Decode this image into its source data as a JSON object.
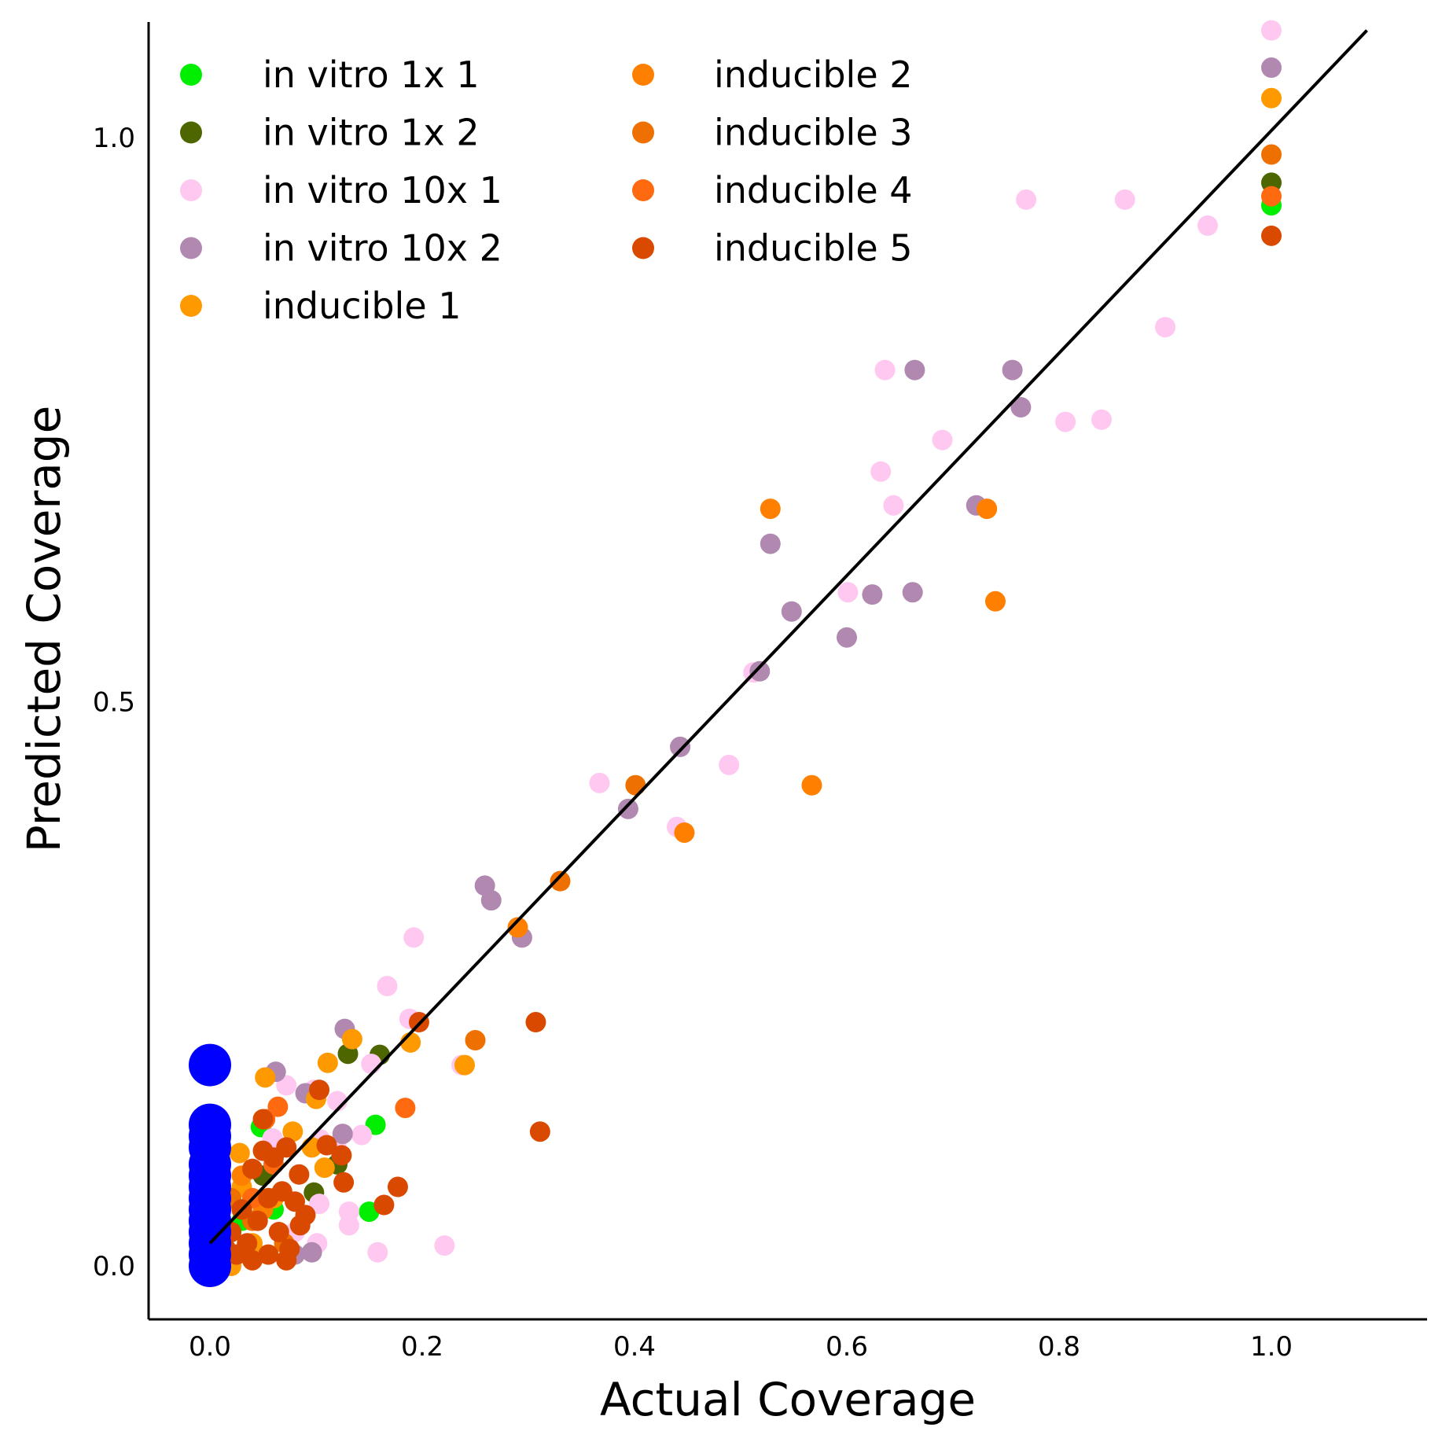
{
  "chart_data": {
    "type": "scatter",
    "title": "",
    "xlabel": "Actual Coverage",
    "ylabel": "Predicted Coverage",
    "xlim": [
      -0.058,
      1.145
    ],
    "ylim": [
      -0.05,
      1.1
    ],
    "xticks": [
      "0.0",
      "0.2",
      "0.4",
      "0.6",
      "0.8",
      "1.0"
    ],
    "yticks": [
      "0.0",
      "0.5",
      "1.0"
    ],
    "grid": false,
    "legend": {
      "placement": "top-left",
      "columns": 2
    },
    "reference_line": {
      "from": [
        0.0,
        0.02
      ],
      "to": [
        1.09,
        1.095
      ],
      "color": "#000000"
    },
    "series": [
      {
        "name": "in vitro 1x 1",
        "color": "#00ee00",
        "points": [
          [
            1.0,
            0.94
          ],
          [
            0.156,
            0.125
          ],
          [
            0.048,
            0.123
          ],
          [
            0.15,
            0.048
          ],
          [
            0.03,
            0.04
          ],
          [
            0.06,
            0.05
          ],
          [
            0.02,
            0.03
          ]
        ]
      },
      {
        "name": "in vitro 1x 2",
        "color": "#4d6600",
        "points": [
          [
            1.0,
            0.96
          ],
          [
            0.16,
            0.187
          ],
          [
            0.13,
            0.188
          ],
          [
            0.098,
            0.065
          ],
          [
            0.12,
            0.09
          ],
          [
            0.05,
            0.08
          ],
          [
            0.03,
            0.05
          ]
        ]
      },
      {
        "name": "in vitro 10x 1",
        "color": "#ffc8f0",
        "points": [
          [
            1.0,
            1.095
          ],
          [
            0.769,
            0.945
          ],
          [
            0.862,
            0.945
          ],
          [
            0.94,
            0.922
          ],
          [
            0.9,
            0.832
          ],
          [
            0.636,
            0.794
          ],
          [
            0.69,
            0.732
          ],
          [
            0.806,
            0.748
          ],
          [
            0.84,
            0.75
          ],
          [
            0.632,
            0.704
          ],
          [
            0.644,
            0.674
          ],
          [
            0.601,
            0.597
          ],
          [
            0.512,
            0.526
          ],
          [
            0.489,
            0.444
          ],
          [
            0.367,
            0.428
          ],
          [
            0.44,
            0.389
          ],
          [
            0.192,
            0.291
          ],
          [
            0.167,
            0.248
          ],
          [
            0.188,
            0.219
          ],
          [
            0.237,
            0.178
          ],
          [
            0.152,
            0.179
          ],
          [
            0.072,
            0.16
          ],
          [
            0.098,
            0.156
          ],
          [
            0.12,
            0.146
          ],
          [
            0.059,
            0.113
          ],
          [
            0.104,
            0.112
          ],
          [
            0.119,
            0.107
          ],
          [
            0.143,
            0.116
          ],
          [
            0.103,
            0.055
          ],
          [
            0.131,
            0.048
          ],
          [
            0.131,
            0.036
          ],
          [
            0.101,
            0.02
          ],
          [
            0.221,
            0.018
          ],
          [
            0.158,
            0.012
          ],
          [
            0.08,
            0.03
          ]
        ]
      },
      {
        "name": "in vitro 10x 2",
        "color": "#b088b0",
        "points": [
          [
            1.0,
            1.062
          ],
          [
            0.664,
            0.794
          ],
          [
            0.756,
            0.794
          ],
          [
            0.764,
            0.761
          ],
          [
            0.722,
            0.674
          ],
          [
            0.528,
            0.64
          ],
          [
            0.548,
            0.58
          ],
          [
            0.6,
            0.557
          ],
          [
            0.624,
            0.595
          ],
          [
            0.662,
            0.597
          ],
          [
            0.518,
            0.527
          ],
          [
            0.443,
            0.46
          ],
          [
            0.394,
            0.405
          ],
          [
            0.259,
            0.337
          ],
          [
            0.265,
            0.324
          ],
          [
            0.294,
            0.291
          ],
          [
            0.127,
            0.21
          ],
          [
            0.062,
            0.172
          ],
          [
            0.09,
            0.153
          ],
          [
            0.125,
            0.117
          ],
          [
            0.08,
            0.01
          ],
          [
            0.096,
            0.012
          ]
        ]
      },
      {
        "name": "inducible 1",
        "color": "#ff9900",
        "points": [
          [
            1.0,
            1.035
          ],
          [
            0.111,
            0.18
          ],
          [
            0.134,
            0.201
          ],
          [
            0.052,
            0.167
          ],
          [
            0.1,
            0.148
          ],
          [
            0.078,
            0.119
          ],
          [
            0.096,
            0.105
          ],
          [
            0.108,
            0.087
          ],
          [
            0.028,
            0.1
          ],
          [
            0.24,
            0.178
          ],
          [
            0.189,
            0.198
          ],
          [
            0.02,
            0.0
          ],
          [
            0.04,
            0.02
          ],
          [
            0.06,
            0.06
          ],
          [
            0.03,
            0.07
          ]
        ]
      },
      {
        "name": "inducible 2",
        "color": "#ff8000",
        "points": [
          [
            0.528,
            0.671
          ],
          [
            0.732,
            0.671
          ],
          [
            0.74,
            0.589
          ],
          [
            0.567,
            0.426
          ],
          [
            0.447,
            0.384
          ],
          [
            0.29,
            0.3
          ],
          [
            0.05,
            0.05
          ],
          [
            0.03,
            0.08
          ]
        ]
      },
      {
        "name": "inducible 3",
        "color": "#ee7000",
        "points": [
          [
            1.0,
            0.985
          ],
          [
            0.401,
            0.426
          ],
          [
            0.33,
            0.341
          ],
          [
            0.25,
            0.2
          ],
          [
            0.04,
            0.04
          ],
          [
            0.02,
            0.06
          ],
          [
            0.07,
            0.02
          ]
        ]
      },
      {
        "name": "inducible 4",
        "color": "#ff6a10",
        "points": [
          [
            1.0,
            0.948
          ],
          [
            0.184,
            0.14
          ],
          [
            0.064,
            0.141
          ],
          [
            0.052,
            0.13
          ],
          [
            0.04,
            0.06
          ],
          [
            0.06,
            0.09
          ]
        ]
      },
      {
        "name": "inducible 5",
        "color": "#d94a00",
        "points": [
          [
            1.0,
            0.913
          ],
          [
            0.197,
            0.216
          ],
          [
            0.307,
            0.216
          ],
          [
            0.311,
            0.119
          ],
          [
            0.177,
            0.07
          ],
          [
            0.164,
            0.054
          ],
          [
            0.103,
            0.156
          ],
          [
            0.072,
            0.105
          ],
          [
            0.084,
            0.081
          ],
          [
            0.11,
            0.107
          ],
          [
            0.124,
            0.098
          ],
          [
            0.126,
            0.074
          ],
          [
            0.05,
            0.13
          ],
          [
            0.05,
            0.102
          ],
          [
            0.06,
            0.096
          ],
          [
            0.04,
            0.086
          ],
          [
            0.068,
            0.066
          ],
          [
            0.055,
            0.06
          ],
          [
            0.08,
            0.057
          ],
          [
            0.085,
            0.036
          ],
          [
            0.03,
            0.05
          ],
          [
            0.045,
            0.04
          ],
          [
            0.02,
            0.03
          ],
          [
            0.065,
            0.03
          ],
          [
            0.035,
            0.02
          ],
          [
            0.075,
            0.015
          ],
          [
            0.055,
            0.01
          ],
          [
            0.04,
            0.005
          ],
          [
            0.025,
            0.01
          ],
          [
            0.072,
            0.005
          ],
          [
            0.09,
            0.045
          ],
          [
            0.015,
            0.015
          ]
        ]
      }
    ],
    "highlight_points": {
      "color": "#0000ff",
      "points": [
        [
          0.0,
          0.178
        ],
        [
          0.0,
          0.125
        ],
        [
          0.0,
          0.115
        ],
        [
          0.0,
          0.105
        ],
        [
          0.0,
          0.09
        ],
        [
          0.0,
          0.08
        ],
        [
          0.0,
          0.07
        ],
        [
          0.0,
          0.06
        ],
        [
          0.0,
          0.05
        ],
        [
          0.0,
          0.04
        ],
        [
          0.0,
          0.03
        ],
        [
          0.0,
          0.02
        ],
        [
          0.0,
          0.01
        ],
        [
          0.0,
          0.0
        ]
      ]
    }
  }
}
